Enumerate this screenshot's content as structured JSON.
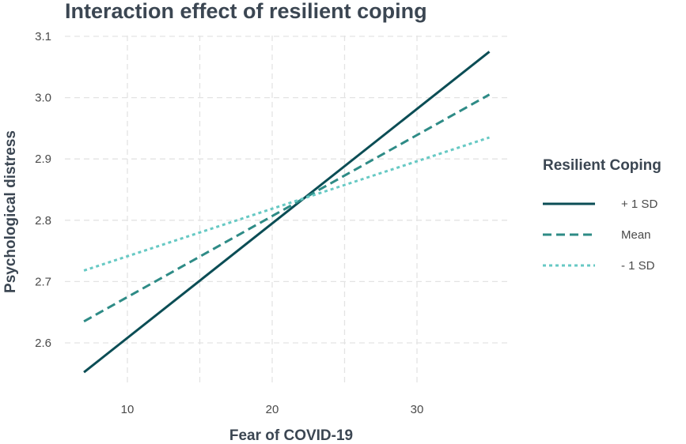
{
  "chart_data": {
    "type": "line",
    "title": "Interaction effect of resilient coping",
    "xlabel": "Fear of COVID-19",
    "ylabel": "Psychological distress",
    "xlim": [
      7,
      35
    ],
    "ylim": [
      2.55,
      3.075
    ],
    "xticks": [
      10,
      20,
      30
    ],
    "yticks": [
      2.6,
      2.7,
      2.8,
      2.9,
      3.0,
      3.1
    ],
    "ytick_labels": [
      "2.6",
      "2.7",
      "2.8",
      "2.9",
      "3.0",
      "3.1"
    ],
    "grid": true,
    "legend": {
      "title": "Resilient Coping",
      "placement": "right"
    },
    "series": [
      {
        "name": "+ 1 SD",
        "x": [
          7,
          35
        ],
        "y": [
          2.552,
          3.075
        ],
        "color": "#0b4d55",
        "dash": "solid"
      },
      {
        "name": "Mean",
        "x": [
          7,
          35
        ],
        "y": [
          2.635,
          3.005
        ],
        "color": "#2e8b86",
        "dash": "dashed"
      },
      {
        "name": "- 1 SD",
        "x": [
          7,
          35
        ],
        "y": [
          2.718,
          2.935
        ],
        "color": "#67c9c4",
        "dash": "dotted"
      }
    ]
  }
}
